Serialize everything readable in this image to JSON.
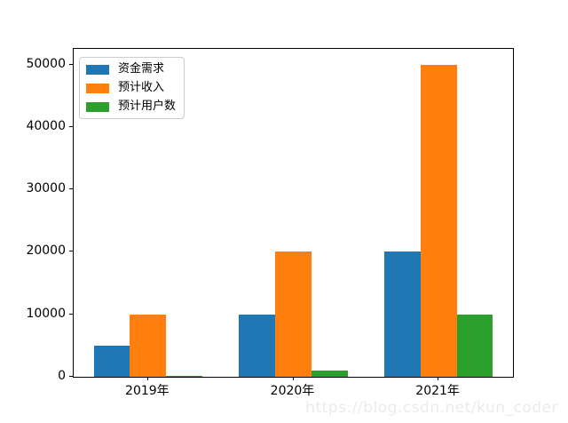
{
  "chart_data": {
    "type": "bar",
    "title": "",
    "xlabel": "",
    "ylabel": "",
    "categories": [
      "2019年",
      "2020年",
      "2021年"
    ],
    "series": [
      {
        "name": "资金需求",
        "color": "#1f77b4",
        "values": [
          5000,
          10000,
          20000
        ]
      },
      {
        "name": "预计收入",
        "color": "#ff7f0e",
        "values": [
          10000,
          20000,
          50000
        ]
      },
      {
        "name": "预计用户数",
        "color": "#2ca02c",
        "values": [
          200,
          1000,
          10000
        ]
      }
    ],
    "y_ticks": [
      0,
      10000,
      20000,
      30000,
      40000,
      50000
    ],
    "ylim": [
      0,
      52500
    ],
    "xlim": [
      -0.5125,
      2.5125
    ],
    "bar_offsets": [
      -0.25,
      0,
      0.25
    ],
    "bar_width": 0.25,
    "grid": false,
    "legend_position": "upper left"
  },
  "watermark": "https://blog.csdn.net/kun_coder"
}
